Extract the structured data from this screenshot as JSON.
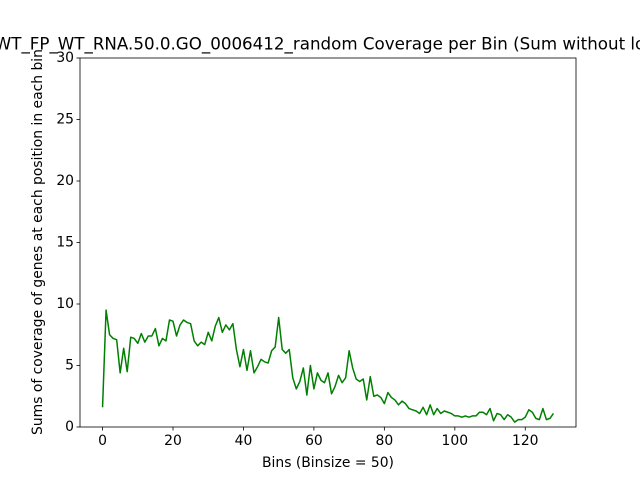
{
  "chart_data": {
    "type": "line",
    "title": "WT_FP_WT_RNA.50.0.GO_0006412_random Coverage per Bin (Sum without lo",
    "x_label": "Bins (Binsize = 50)",
    "y_label": "Sums of coverage of genes at each position in each bin",
    "color": "#008000",
    "x": [
      0,
      1,
      2,
      3,
      4,
      5,
      6,
      7,
      8,
      9,
      10,
      11,
      12,
      13,
      14,
      15,
      16,
      17,
      18,
      19,
      20,
      21,
      22,
      23,
      24,
      25,
      26,
      27,
      28,
      29,
      30,
      31,
      32,
      33,
      34,
      35,
      36,
      37,
      38,
      39,
      40,
      41,
      42,
      43,
      44,
      45,
      46,
      47,
      48,
      49,
      50,
      51,
      52,
      53,
      54,
      55,
      56,
      57,
      58,
      59,
      60,
      61,
      62,
      63,
      64,
      65,
      66,
      67,
      68,
      69,
      70,
      71,
      72,
      73,
      74,
      75,
      76,
      77,
      78,
      79,
      80,
      81,
      82,
      83,
      84,
      85,
      86,
      87,
      88,
      89,
      90,
      91,
      92,
      93,
      94,
      95,
      96,
      97,
      98,
      99,
      100,
      101,
      102,
      103,
      104,
      105,
      106,
      107,
      108,
      109,
      110,
      111,
      112,
      113,
      114,
      115,
      116,
      117,
      118,
      119,
      120,
      121,
      122,
      123,
      124,
      125,
      126,
      127,
      128
    ],
    "values": [
      1.6,
      9.5,
      7.5,
      7.2,
      7.1,
      4.4,
      6.4,
      4.5,
      7.3,
      7.2,
      6.8,
      7.6,
      6.9,
      7.4,
      7.4,
      8.0,
      6.6,
      7.2,
      7.0,
      8.7,
      8.6,
      7.4,
      8.3,
      8.7,
      8.5,
      8.4,
      7.0,
      6.6,
      6.9,
      6.7,
      7.7,
      7.0,
      8.2,
      8.9,
      7.7,
      8.3,
      7.9,
      8.4,
      6.3,
      4.9,
      6.3,
      4.6,
      6.2,
      4.4,
      4.9,
      5.5,
      5.3,
      5.2,
      6.2,
      6.5,
      8.9,
      6.3,
      6.0,
      6.3,
      4.0,
      3.1,
      3.7,
      4.8,
      2.6,
      5.0,
      3.1,
      4.4,
      3.8,
      3.6,
      4.4,
      2.7,
      3.3,
      4.2,
      3.6,
      4.0,
      6.2,
      4.8,
      3.9,
      3.7,
      3.9,
      2.2,
      4.1,
      2.5,
      2.6,
      2.4,
      1.9,
      2.8,
      2.4,
      2.2,
      1.8,
      2.1,
      1.9,
      1.5,
      1.4,
      1.3,
      1.1,
      1.6,
      1.0,
      1.8,
      1.0,
      1.5,
      1.1,
      1.3,
      1.2,
      1.1,
      0.9,
      0.9,
      0.8,
      0.9,
      0.8,
      0.9,
      0.9,
      1.2,
      1.2,
      1.0,
      1.5,
      0.5,
      1.1,
      1.0,
      0.6,
      1.0,
      0.8,
      0.4,
      0.6,
      0.6,
      0.8,
      1.4,
      1.2,
      0.7,
      0.6,
      1.5,
      0.6,
      0.7,
      1.1
    ],
    "xlim": [
      -6.4,
      134.4
    ],
    "xticks": [
      0,
      20,
      40,
      60,
      80,
      100,
      120
    ],
    "ylim": [
      0,
      30
    ],
    "yticks": [
      0,
      5,
      10,
      15,
      20,
      25,
      30
    ]
  }
}
